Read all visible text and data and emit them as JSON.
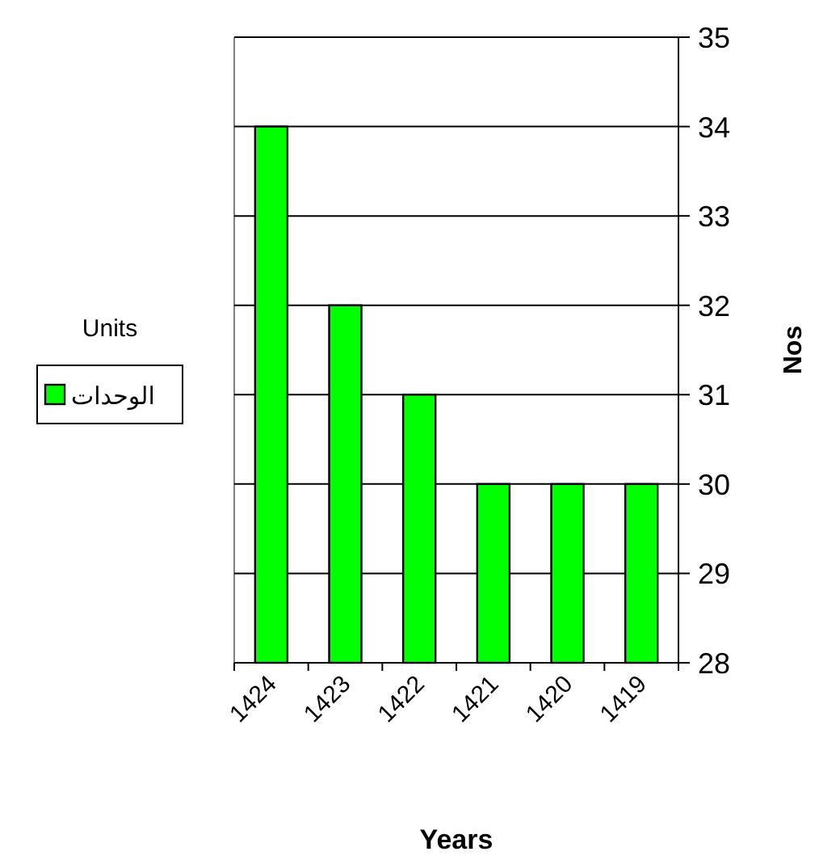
{
  "chart_data": {
    "type": "bar",
    "xlabel": "Years",
    "ylabel": "Nos",
    "legend_title": "Units",
    "categories": [
      "1424",
      "1423",
      "1422",
      "1421",
      "1420",
      "1419"
    ],
    "series": [
      {
        "name": "الوحدات",
        "color": "#00ff00",
        "values": [
          34,
          32,
          31,
          30,
          30,
          30
        ]
      }
    ],
    "ylim": [
      28,
      35
    ],
    "yticks": [
      28,
      29,
      30,
      31,
      32,
      33,
      34,
      35
    ],
    "grid": "y",
    "legend": "left"
  }
}
